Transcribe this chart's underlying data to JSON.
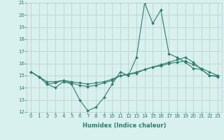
{
  "xlabel": "Humidex (Indice chaleur)",
  "x_values": [
    0,
    1,
    2,
    3,
    4,
    5,
    6,
    7,
    8,
    9,
    10,
    11,
    12,
    13,
    14,
    15,
    16,
    17,
    18,
    19,
    20,
    21,
    22,
    23
  ],
  "line1": [
    15.3,
    14.9,
    14.3,
    14.0,
    14.5,
    14.3,
    13.0,
    12.1,
    12.4,
    13.2,
    14.3,
    15.3,
    15.0,
    16.5,
    21.0,
    19.3,
    20.4,
    16.8,
    16.5,
    16.1,
    15.6,
    15.5,
    15.0,
    15.0
  ],
  "line2": [
    15.3,
    14.9,
    14.3,
    14.4,
    14.6,
    14.4,
    14.2,
    14.1,
    14.2,
    14.4,
    14.6,
    15.0,
    15.1,
    15.3,
    15.5,
    15.7,
    15.9,
    16.1,
    16.3,
    16.5,
    16.1,
    15.5,
    15.0,
    14.9
  ],
  "line3": [
    15.3,
    14.9,
    14.5,
    14.5,
    14.6,
    14.5,
    14.4,
    14.3,
    14.4,
    14.5,
    14.7,
    15.0,
    15.1,
    15.2,
    15.5,
    15.7,
    15.8,
    16.0,
    16.1,
    16.2,
    15.9,
    15.6,
    15.3,
    15.0
  ],
  "line_color": "#2e7d6e",
  "bg_color": "#d8f0ee",
  "grid_color": "#b8ceca",
  "ylim": [
    12,
    21
  ],
  "yticks": [
    12,
    13,
    14,
    15,
    16,
    17,
    18,
    19,
    20,
    21
  ],
  "xticks": [
    0,
    1,
    2,
    3,
    4,
    5,
    6,
    7,
    8,
    9,
    10,
    11,
    12,
    13,
    14,
    15,
    16,
    17,
    18,
    19,
    20,
    21,
    22,
    23
  ],
  "marker": "D",
  "markersize": 1.8,
  "linewidth": 0.8,
  "tick_fontsize": 5.0,
  "xlabel_fontsize": 6.0
}
